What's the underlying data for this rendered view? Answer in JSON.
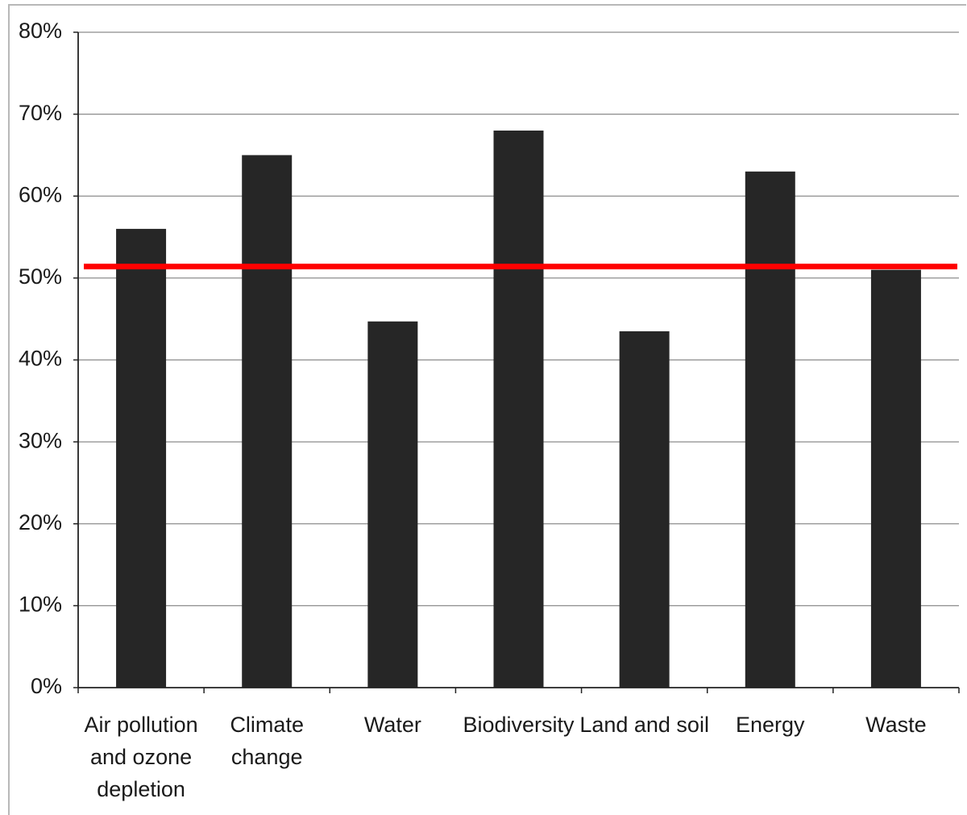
{
  "chart_data": {
    "type": "bar",
    "categories": [
      [
        "Air pollution",
        "and ozone",
        "depletion"
      ],
      [
        "Climate",
        "change"
      ],
      [
        "Water"
      ],
      [
        "Biodiversity"
      ],
      [
        "Land and soil"
      ],
      [
        "Energy"
      ],
      [
        "Waste"
      ]
    ],
    "values": [
      56,
      65,
      44.7,
      68,
      43.5,
      63,
      51
    ],
    "reference_line": {
      "value": 51.4,
      "color": "#ff0000"
    },
    "y_tick_labels": [
      "0%",
      "10%",
      "20%",
      "30%",
      "40%",
      "50%",
      "60%",
      "70%",
      "80%"
    ],
    "ylim": [
      0,
      80
    ],
    "y_step": 10,
    "grid": true,
    "legend": "none",
    "title": "",
    "xlabel": "",
    "ylabel": "",
    "bar_color": "#262626",
    "grid_color": "#8c8c8c"
  }
}
